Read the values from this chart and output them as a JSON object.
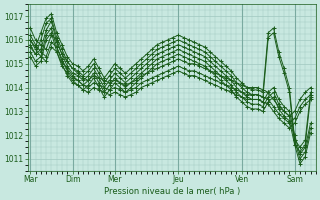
{
  "background_color": "#c8e8e0",
  "line_color": "#1a5c1a",
  "marker_color": "#1a5c1a",
  "grid_color": "#a0c8c0",
  "title": "Pression niveau de la mer( hPa )",
  "ylim": [
    1010.5,
    1017.5
  ],
  "yticks": [
    1011,
    1012,
    1013,
    1014,
    1015,
    1016,
    1017
  ],
  "x_day_labels": [
    "Mar",
    "Dim",
    "Mer",
    "Jeu",
    "Ven",
    "Sam"
  ],
  "x_day_positions": [
    0,
    8,
    16,
    28,
    40,
    50
  ],
  "xlim": [
    -0.5,
    54
  ],
  "series": [
    [
      1016.5,
      1016.0,
      1015.8,
      1015.6,
      1016.2,
      1016.0,
      1015.4,
      1015.1,
      1014.8,
      1014.6,
      1014.4,
      1014.3,
      1014.5,
      1014.4,
      1014.3,
      1014.2,
      1014.3,
      1014.2,
      1014.1,
      1014.2,
      1014.3,
      1014.5,
      1014.6,
      1014.7,
      1014.8,
      1014.9,
      1015.0,
      1015.1,
      1015.2,
      1015.1,
      1015.0,
      1015.0,
      1014.9,
      1014.8,
      1014.7,
      1014.6,
      1014.5,
      1014.4,
      1014.3,
      1014.2,
      1014.1,
      1014.0,
      1014.0,
      1014.0,
      1013.9,
      1013.8,
      1013.5,
      1013.2,
      1013.0,
      1012.8,
      1013.0,
      1013.5,
      1013.8,
      1014.0
    ],
    [
      1016.2,
      1015.8,
      1015.5,
      1015.3,
      1015.9,
      1015.7,
      1015.1,
      1014.8,
      1014.5,
      1014.3,
      1014.1,
      1014.0,
      1014.2,
      1014.1,
      1014.0,
      1013.9,
      1014.0,
      1013.9,
      1013.8,
      1013.9,
      1014.0,
      1014.2,
      1014.3,
      1014.4,
      1014.5,
      1014.6,
      1014.7,
      1014.8,
      1014.9,
      1014.8,
      1014.7,
      1014.7,
      1014.6,
      1014.5,
      1014.4,
      1014.3,
      1014.2,
      1014.1,
      1014.0,
      1013.9,
      1013.8,
      1013.7,
      1013.7,
      1013.7,
      1013.6,
      1013.5,
      1013.2,
      1012.9,
      1012.7,
      1012.5,
      1012.7,
      1013.2,
      1013.5,
      1013.7
    ],
    [
      1016.0,
      1015.6,
      1015.3,
      1015.1,
      1015.7,
      1015.5,
      1014.9,
      1014.6,
      1014.3,
      1014.1,
      1013.9,
      1013.8,
      1014.0,
      1013.9,
      1013.8,
      1013.7,
      1013.8,
      1013.7,
      1013.6,
      1013.7,
      1013.8,
      1014.0,
      1014.1,
      1014.2,
      1014.3,
      1014.4,
      1014.5,
      1014.6,
      1014.7,
      1014.6,
      1014.5,
      1014.5,
      1014.4,
      1014.3,
      1014.2,
      1014.1,
      1014.0,
      1013.9,
      1013.8,
      1013.7,
      1013.6,
      1013.5,
      1013.5,
      1013.5,
      1013.4,
      1013.3,
      1013.0,
      1012.7,
      1012.5,
      1012.3,
      1012.5,
      1013.0,
      1013.3,
      1013.5
    ],
    [
      1015.8,
      1015.4,
      1015.6,
      1016.4,
      1016.8,
      1015.9,
      1015.4,
      1014.9,
      1014.6,
      1014.5,
      1014.3,
      1014.5,
      1014.8,
      1014.4,
      1014.0,
      1014.3,
      1014.6,
      1014.4,
      1014.2,
      1014.4,
      1014.6,
      1014.8,
      1015.0,
      1015.2,
      1015.4,
      1015.5,
      1015.6,
      1015.7,
      1015.8,
      1015.7,
      1015.6,
      1015.5,
      1015.4,
      1015.3,
      1015.1,
      1014.9,
      1014.7,
      1014.5,
      1014.3,
      1014.0,
      1013.8,
      1013.6,
      1013.5,
      1013.5,
      1013.4,
      1013.8,
      1014.0,
      1013.5,
      1013.2,
      1013.0,
      1012.0,
      1011.2,
      1011.5,
      1012.5
    ],
    [
      1015.5,
      1015.1,
      1015.3,
      1016.2,
      1016.5,
      1015.7,
      1015.2,
      1014.7,
      1014.4,
      1014.3,
      1014.1,
      1014.3,
      1014.6,
      1014.2,
      1013.8,
      1014.1,
      1014.4,
      1014.2,
      1014.0,
      1014.2,
      1014.4,
      1014.6,
      1014.8,
      1015.0,
      1015.2,
      1015.3,
      1015.4,
      1015.5,
      1015.6,
      1015.5,
      1015.4,
      1015.3,
      1015.2,
      1015.1,
      1014.9,
      1014.7,
      1014.5,
      1014.3,
      1014.1,
      1013.8,
      1013.6,
      1013.4,
      1013.3,
      1013.3,
      1013.2,
      1013.6,
      1013.8,
      1013.3,
      1013.0,
      1012.8,
      1011.8,
      1011.0,
      1011.3,
      1012.3
    ],
    [
      1015.3,
      1014.9,
      1015.1,
      1016.0,
      1016.3,
      1015.5,
      1015.0,
      1014.5,
      1014.2,
      1014.1,
      1013.9,
      1014.1,
      1014.4,
      1014.0,
      1013.6,
      1013.9,
      1014.2,
      1014.0,
      1013.8,
      1014.0,
      1014.2,
      1014.4,
      1014.6,
      1014.8,
      1015.0,
      1015.1,
      1015.2,
      1015.3,
      1015.4,
      1015.3,
      1015.2,
      1015.1,
      1015.0,
      1014.9,
      1014.7,
      1014.5,
      1014.3,
      1014.1,
      1013.9,
      1013.6,
      1013.4,
      1013.2,
      1013.1,
      1013.1,
      1013.0,
      1013.4,
      1013.6,
      1013.1,
      1012.8,
      1012.6,
      1011.6,
      1010.8,
      1011.1,
      1012.1
    ],
    [
      1016.0,
      1015.7,
      1016.3,
      1016.9,
      1017.1,
      1016.3,
      1015.8,
      1015.3,
      1015.0,
      1014.9,
      1014.7,
      1014.9,
      1015.2,
      1014.8,
      1014.4,
      1014.7,
      1015.0,
      1014.8,
      1014.6,
      1014.8,
      1015.0,
      1015.2,
      1015.4,
      1015.6,
      1015.8,
      1015.9,
      1016.0,
      1016.1,
      1016.2,
      1016.1,
      1016.0,
      1015.9,
      1015.8,
      1015.7,
      1015.5,
      1015.3,
      1015.1,
      1014.9,
      1014.7,
      1014.4,
      1014.2,
      1014.0,
      1013.9,
      1013.9,
      1013.8,
      1016.3,
      1016.5,
      1015.5,
      1014.8,
      1014.0,
      1011.8,
      1011.5,
      1011.8,
      1013.8
    ],
    [
      1015.7,
      1015.4,
      1016.0,
      1016.7,
      1016.9,
      1016.1,
      1015.6,
      1015.1,
      1014.8,
      1014.7,
      1014.5,
      1014.7,
      1015.0,
      1014.6,
      1014.2,
      1014.5,
      1014.8,
      1014.6,
      1014.4,
      1014.6,
      1014.8,
      1015.0,
      1015.2,
      1015.4,
      1015.6,
      1015.7,
      1015.8,
      1015.9,
      1016.0,
      1015.9,
      1015.8,
      1015.7,
      1015.6,
      1015.5,
      1015.3,
      1015.1,
      1014.9,
      1014.7,
      1014.5,
      1014.2,
      1014.0,
      1013.8,
      1013.7,
      1013.7,
      1013.6,
      1016.1,
      1016.3,
      1015.3,
      1014.6,
      1013.8,
      1011.6,
      1011.3,
      1011.6,
      1013.6
    ]
  ]
}
